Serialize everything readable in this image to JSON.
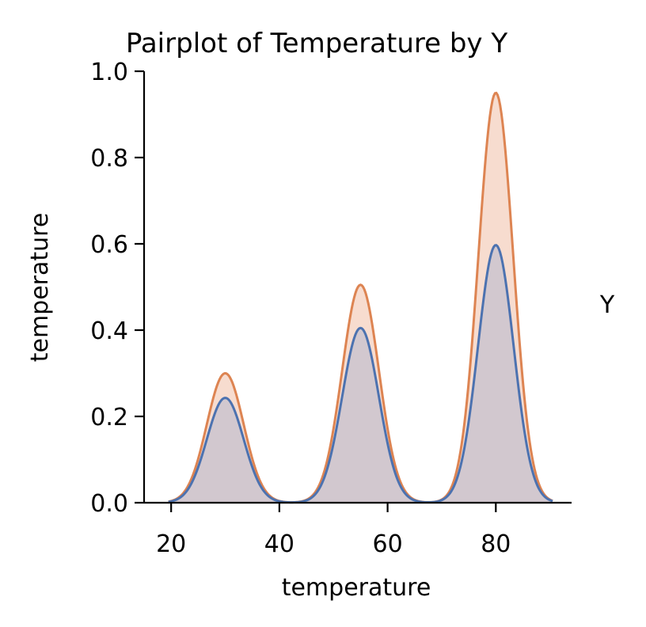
{
  "chart_data": {
    "type": "area",
    "title": "Pairplot of Temperature by Y",
    "xlabel": "temperature",
    "ylabel": "temperature",
    "legend_title": "Y",
    "xlim": [
      15,
      94
    ],
    "ylim": [
      0,
      1.0
    ],
    "x_ticks": [
      20,
      40,
      60,
      80
    ],
    "y_ticks": [
      0.0,
      0.2,
      0.4,
      0.6,
      0.8,
      1.0
    ],
    "y_tick_labels": [
      "0.0",
      "0.2",
      "0.4",
      "0.6",
      "0.8",
      "1.0"
    ],
    "grid": false,
    "x_range_drawn": [
      19.5,
      90.5
    ],
    "series": [
      {
        "color": "#dd8452",
        "fill": "#f7dccf",
        "peaks": [
          {
            "x": 30,
            "y": 0.3,
            "sigma": 3.4
          },
          {
            "x": 55,
            "y": 0.505,
            "sigma": 3.4
          },
          {
            "x": 80,
            "y": 0.95,
            "sigma": 3.2
          }
        ]
      },
      {
        "color": "#4c72b0",
        "fill": "#cbc4cf",
        "peaks": [
          {
            "x": 30,
            "y": 0.243,
            "sigma": 3.4
          },
          {
            "x": 55,
            "y": 0.405,
            "sigma": 3.4
          },
          {
            "x": 80,
            "y": 0.597,
            "sigma": 3.3
          }
        ]
      }
    ]
  }
}
